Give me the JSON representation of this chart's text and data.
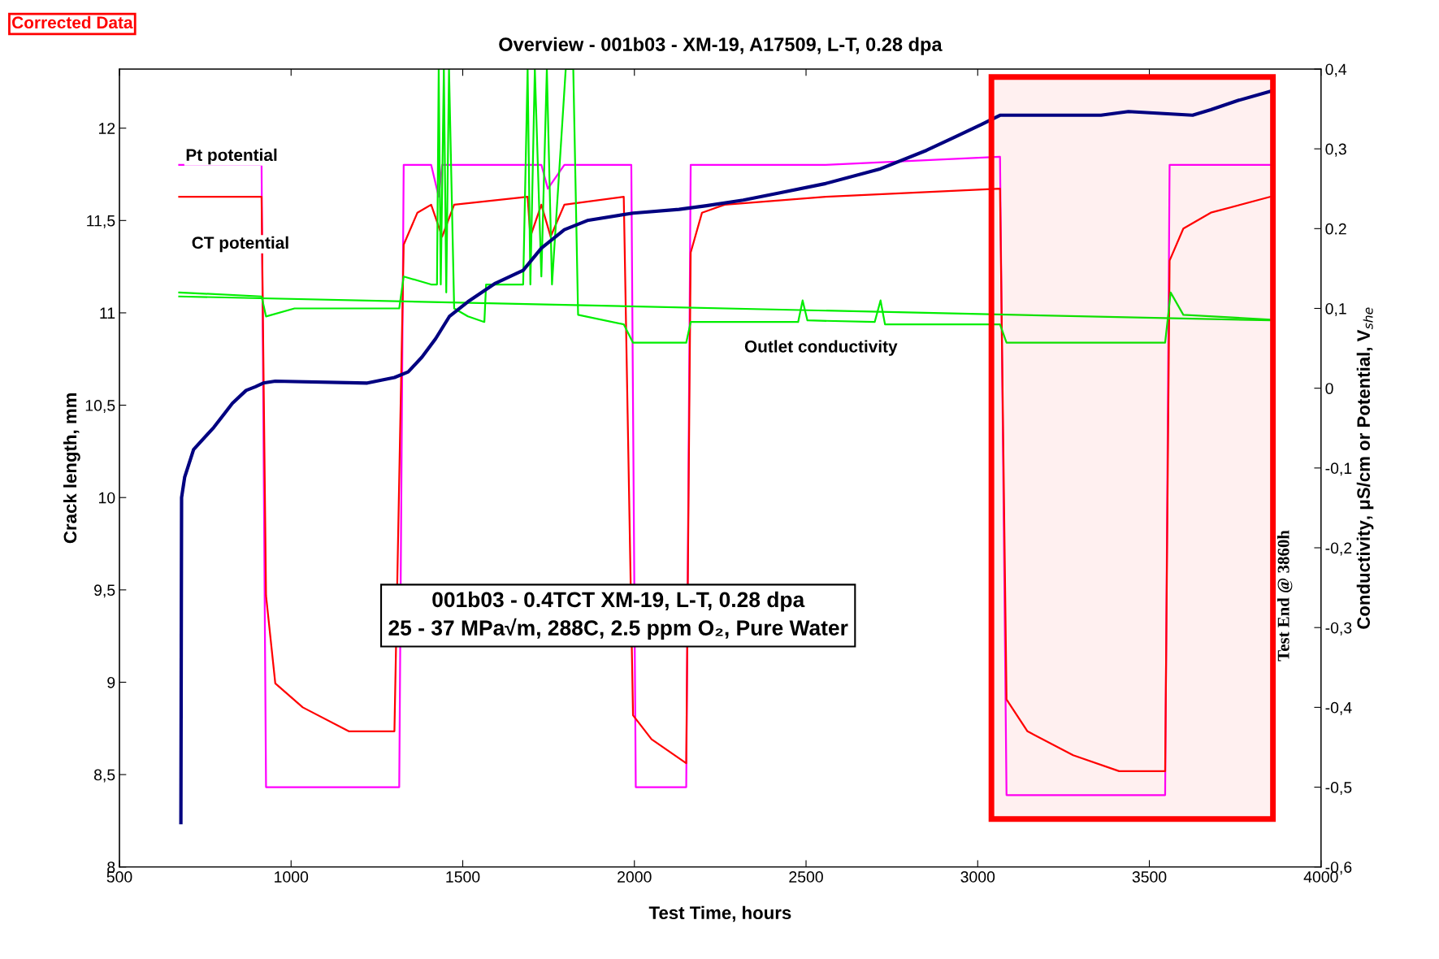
{
  "chart_data": {
    "type": "line",
    "title": "Overview - 001b03 - XM-19, A17509, L-T, 0.28 dpa",
    "xlabel": "Test Time, hours",
    "ylabel": "Crack length, mm",
    "y2label": "Conductivity, μS/cm or Potential, V$_{she}$",
    "xlim": [
      500,
      4000
    ],
    "xticks": [
      500,
      1000,
      1500,
      2000,
      2500,
      3000,
      3500,
      4000
    ],
    "ylim": [
      8,
      12.32
    ],
    "yticks": [
      8,
      {
        "value": 8.5,
        "label": "8,5"
      },
      9,
      {
        "value": 9.5,
        "label": "9,5"
      },
      10,
      {
        "value": 10.5,
        "label": "10,5"
      },
      11,
      {
        "value": 11.5,
        "label": "11,5"
      },
      12
    ],
    "y2lim": [
      -0.6,
      0.4
    ],
    "y2ticks": [
      {
        "value": -0.6,
        "label": "-0,6"
      },
      {
        "value": -0.5,
        "label": "-0,5"
      },
      {
        "value": -0.4,
        "label": "-0,4"
      },
      {
        "value": -0.3,
        "label": "-0,3"
      },
      {
        "value": -0.2,
        "label": "-0,2"
      },
      {
        "value": -0.1,
        "label": "-0,1"
      },
      0,
      {
        "value": 0.1,
        "label": "0,1"
      },
      {
        "value": 0.2,
        "label": "0.2"
      },
      {
        "value": 0.3,
        "label": "0,3"
      },
      {
        "value": 0.4,
        "label": "0,4"
      }
    ],
    "grid": false,
    "marker": "none",
    "line_style": "solid",
    "bands": [
      {
        "axis": "x",
        "from": 3040,
        "to": 3860,
        "color": "#ff0000"
      }
    ],
    "annotations": [
      "Corrected Data",
      "001b03 - 0.4TCT XM-19, L-T, 0.28 dpa\n25 - 37 MPa√m, 288C, 2.5 ppm O₂, Pure Water",
      "Test End @ 3860h"
    ],
    "series": [
      {
        "color": "#000080",
        "x": [
          679,
          681,
          690,
          716,
          775,
          829,
          869,
          896,
          919,
          954,
          1222,
          1301,
          1341,
          1381,
          1421,
          1461,
          1515,
          1595,
          1676,
          1729,
          1796,
          1863,
          1996,
          2130,
          2210,
          2317,
          2424,
          2557,
          2717,
          2851,
          2931,
          3011,
          3065,
          3359,
          3439,
          3626,
          3679,
          3759,
          3853
        ],
        "values": [
          8.24,
          10.0,
          10.11,
          10.26,
          10.38,
          10.51,
          10.58,
          10.6,
          10.62,
          10.63,
          10.62,
          10.65,
          10.68,
          10.76,
          10.86,
          10.98,
          11.06,
          11.16,
          11.23,
          11.35,
          11.45,
          11.5,
          11.54,
          11.56,
          11.58,
          11.61,
          11.65,
          11.7,
          11.78,
          11.88,
          11.95,
          12.02,
          12.07,
          12.07,
          12.09,
          12.07,
          12.1,
          12.15,
          12.2
        ]
      },
      {
        "name": "Pt potential",
        "color": "#ff00ff",
        "axis": "y2",
        "x": [
          674,
          914,
          927,
          1315,
          1328,
          1408,
          1430,
          1440,
          1475,
          1689,
          1729,
          1748,
          1796,
          1822,
          1991,
          2004,
          2151,
          2164,
          2557,
          3065,
          3084,
          3546,
          3559,
          3853
        ],
        "values": [
          0.28,
          0.28,
          -0.5,
          -0.5,
          0.28,
          0.28,
          0.24,
          0.28,
          0.28,
          0.28,
          0.28,
          0.25,
          0.28,
          0.28,
          0.28,
          -0.5,
          -0.5,
          0.28,
          0.28,
          0.29,
          -0.51,
          -0.51,
          0.28,
          0.28
        ]
      },
      {
        "name": "CT potential",
        "color": "#ff0000",
        "axis": "y2",
        "x": [
          674,
          914,
          927,
          954,
          1034,
          1168,
          1301,
          1328,
          1368,
          1408,
          1440,
          1475,
          1689,
          1697,
          1729,
          1756,
          1796,
          1969,
          1996,
          2050,
          2151,
          2164,
          2197,
          2263,
          2557,
          3065,
          3084,
          3145,
          3278,
          3412,
          3546,
          3559,
          3599,
          3679,
          3853
        ],
        "values": [
          0.24,
          0.24,
          -0.26,
          -0.37,
          -0.4,
          -0.43,
          -0.43,
          0.18,
          0.22,
          0.23,
          0.19,
          0.23,
          0.24,
          0.19,
          0.23,
          0.19,
          0.23,
          0.24,
          -0.41,
          -0.44,
          -0.47,
          0.17,
          0.22,
          0.23,
          0.24,
          0.25,
          -0.39,
          -0.43,
          -0.46,
          -0.48,
          -0.48,
          0.16,
          0.2,
          0.22,
          0.24
        ]
      },
      {
        "name": "Outlet conductivity",
        "color": "#00ee00",
        "axis": "y2",
        "x": [
          674,
          914,
          927,
          1010,
          1315,
          1328,
          1408,
          1425,
          1430,
          1436,
          1445,
          1452,
          1460,
          1475,
          1515,
          1563,
          1568,
          1676,
          1689,
          1697,
          1710,
          1729,
          1745,
          1760,
          1800,
          1822,
          1836,
          1969,
          1996,
          2151,
          2164,
          2477,
          2490,
          2504,
          2700,
          2717,
          2730,
          3065,
          3084,
          3546,
          3562,
          3599,
          3853
        ],
        "values": [
          0.12,
          0.115,
          0.09,
          0.1,
          0.1,
          0.14,
          0.13,
          0.13,
          0.4,
          0.13,
          0.4,
          0.12,
          0.4,
          0.1,
          0.09,
          0.083,
          0.13,
          0.13,
          0.4,
          0.13,
          0.4,
          0.14,
          0.4,
          0.13,
          0.4,
          0.4,
          0.092,
          0.08,
          0.057,
          0.057,
          0.083,
          0.083,
          0.11,
          0.085,
          0.083,
          0.11,
          0.08,
          0.08,
          0.057,
          0.057,
          0.12,
          0.092,
          0.086
        ]
      },
      {
        "type": "line",
        "color": "#00ee00",
        "axis": "y2",
        "x": [
          674,
          3853
        ],
        "values": [
          0.115,
          0.085
        ]
      }
    ]
  }
}
